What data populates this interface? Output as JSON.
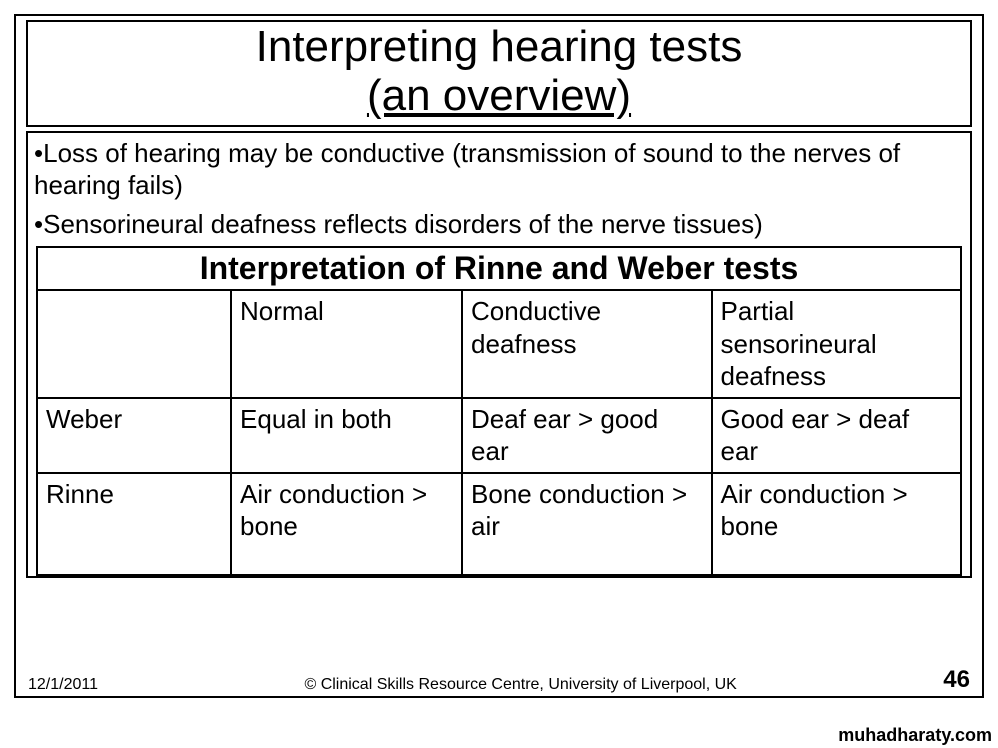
{
  "title": {
    "line1": "Interpreting hearing tests",
    "line2": "(an overview)"
  },
  "bullets": [
    "•Loss of hearing may be conductive (transmission of sound to the nerves of hearing fails)",
    "•Sensorineural deafness reflects disorders of the nerve tissues)"
  ],
  "table": {
    "title": "Interpretation of Rinne and Weber tests",
    "columns": [
      "",
      "Normal",
      "Conductive deafness",
      "Partial sensorineural deafness"
    ],
    "rows": [
      [
        "Weber",
        "Equal in both",
        "Deaf ear > good ear",
        "Good ear > deaf ear"
      ],
      [
        "Rinne",
        "Air conduction > bone",
        "Bone conduction > air",
        "Air conduction > bone"
      ]
    ],
    "col_widths_pct": [
      21,
      25,
      27,
      27
    ]
  },
  "footer": {
    "date": "12/1/2011",
    "copyright": "© Clinical Skills Resource Centre, University of Liverpool, UK",
    "page": "46"
  },
  "watermark": "muhadharaty.com",
  "style": {
    "background": "#ffffff",
    "border_color": "#000000",
    "title_fontsize": 44,
    "body_fontsize": 26,
    "table_title_fontsize": 32,
    "footer_fontsize": 16,
    "pagenum_fontsize": 24,
    "font_family": "Arial"
  }
}
